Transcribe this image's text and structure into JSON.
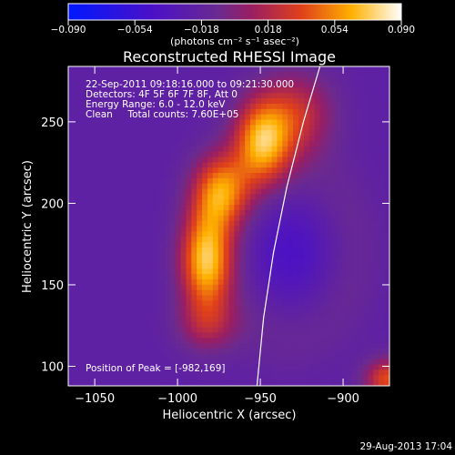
{
  "chart_data": {
    "type": "heatmap",
    "title": "Reconstructed RHESSI Image",
    "xlabel": "Heliocentric X (arcsec)",
    "ylabel": "Heliocentric Y (arcsec)",
    "xlim": [
      -1066,
      -872
    ],
    "ylim": [
      88,
      284
    ],
    "x_ticks": [
      -1050,
      -1000,
      -950,
      -900
    ],
    "x_tick_labels": [
      "−1050",
      "−1000",
      "−950",
      "−900"
    ],
    "y_ticks": [
      100,
      150,
      200,
      250
    ],
    "y_tick_labels": [
      "100",
      "150",
      "200",
      "250"
    ],
    "colorbar": {
      "range": [
        -0.09,
        0.09
      ],
      "ticks": [
        -0.09,
        -0.054,
        -0.018,
        0.018,
        0.054,
        0.09
      ],
      "tick_labels": [
        "−0.090",
        "−0.054",
        "−0.018",
        "0.018",
        "0.054",
        "0.090"
      ],
      "unit": "(photons cm⁻² s⁻¹ asec⁻²)",
      "colormap": "blue-purple-red-yellow-white"
    },
    "annotations": [
      "22-Sep-2011 09:18:16.000 to 09:21:30.000",
      "Detectors: 4F 5F 6F 7F 8F, Att 0",
      "Energy Range: 6.0 - 12.0 keV",
      "Clean     Total counts: 7.60E+05"
    ],
    "peak_label": "Position of Peak = [-982,169]",
    "peak": [
      -982,
      169
    ],
    "limb_arc": [
      [
        -952,
        88
      ],
      [
        -948,
        130
      ],
      [
        -942,
        170
      ],
      [
        -934,
        210
      ],
      [
        -924,
        250
      ],
      [
        -914,
        284
      ]
    ],
    "sources": [
      {
        "x": -983,
        "y": 165,
        "sx": 11,
        "sy": 22,
        "amp": 0.088
      },
      {
        "x": -974,
        "y": 208,
        "sx": 12,
        "sy": 16,
        "amp": 0.07
      },
      {
        "x": -949,
        "y": 238,
        "sx": 12,
        "sy": 18,
        "amp": 0.08
      },
      {
        "x": -928,
        "y": 255,
        "sx": 16,
        "sy": 18,
        "amp": 0.045
      },
      {
        "x": -982,
        "y": 125,
        "sx": 13,
        "sy": 12,
        "amp": 0.03
      },
      {
        "x": -873,
        "y": 92,
        "sx": 10,
        "sy": 9,
        "amp": 0.06
      }
    ]
  },
  "footer": {
    "date": "29-Aug-2013 17:04"
  }
}
